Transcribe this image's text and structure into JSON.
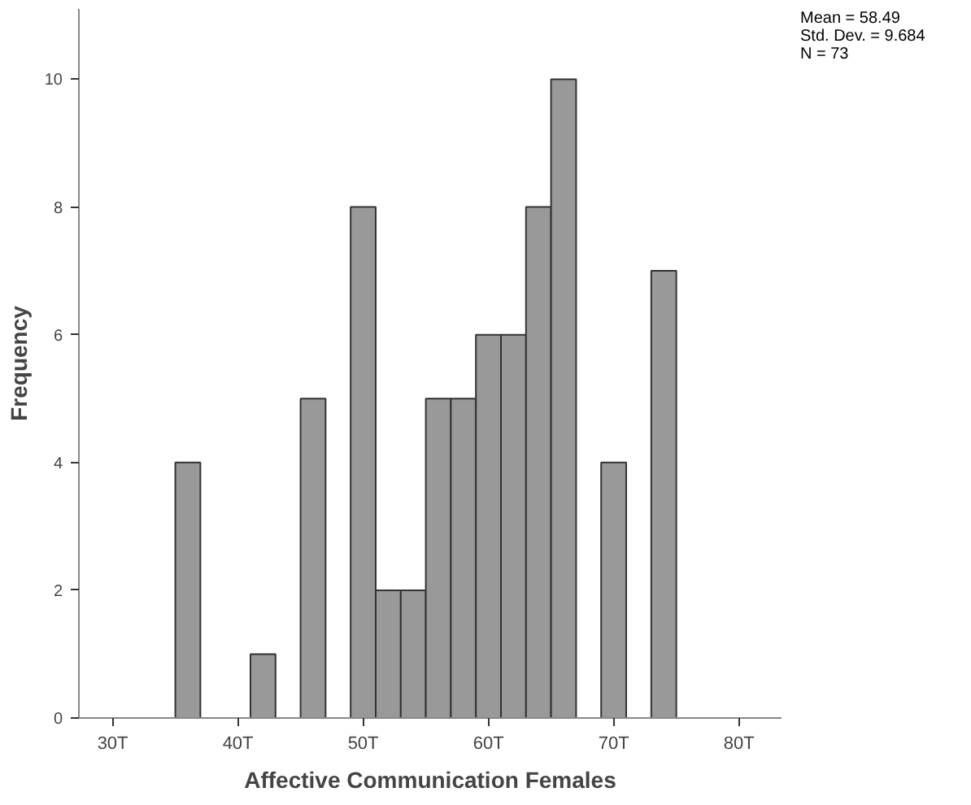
{
  "chart_data": {
    "type": "histogram",
    "xlabel": "Affective Communication Females",
    "ylabel": "Frequency",
    "bins": [
      35,
      37,
      39,
      41,
      43,
      45,
      47,
      49,
      51,
      53,
      55,
      57,
      59,
      61,
      63,
      65,
      67,
      69,
      71,
      73,
      75
    ],
    "values": [
      4,
      0,
      0,
      1,
      0,
      5,
      0,
      8,
      2,
      2,
      5,
      5,
      6,
      6,
      8,
      10,
      0,
      4,
      0,
      7
    ],
    "color": "#999999",
    "xlim": [
      27.3,
      83.4
    ],
    "ylim": [
      0,
      11.1
    ],
    "xticks": [
      {
        "value": 30,
        "label": "30T"
      },
      {
        "value": 40,
        "label": "40T"
      },
      {
        "value": 50,
        "label": "50T"
      },
      {
        "value": 60,
        "label": "60T"
      },
      {
        "value": 70,
        "label": "70T"
      },
      {
        "value": 80,
        "label": "80T"
      }
    ],
    "yticks": [
      0,
      2,
      4,
      6,
      8,
      10
    ],
    "grid": false,
    "annotations": [
      "Mean = 58.49",
      "Std. Dev. = 9.684",
      "N = 73"
    ]
  }
}
